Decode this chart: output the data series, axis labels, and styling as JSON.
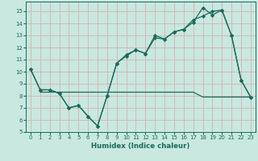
{
  "x": [
    0,
    1,
    2,
    3,
    4,
    5,
    6,
    7,
    8,
    9,
    10,
    11,
    12,
    13,
    14,
    15,
    16,
    17,
    18,
    19,
    20,
    21,
    22,
    23
  ],
  "line1": [
    10.2,
    8.5,
    8.5,
    8.2,
    7.0,
    7.2,
    6.3,
    5.5,
    8.0,
    10.7,
    11.3,
    11.8,
    11.5,
    13.0,
    12.7,
    13.3,
    13.5,
    14.1,
    15.3,
    14.7,
    15.1,
    13.0,
    9.3,
    7.9
  ],
  "line2": [
    10.2,
    8.5,
    8.5,
    8.2,
    7.0,
    7.2,
    6.3,
    5.5,
    8.0,
    10.7,
    11.4,
    11.8,
    11.5,
    12.8,
    12.7,
    13.3,
    13.5,
    14.3,
    14.6,
    15.0,
    15.1,
    13.0,
    9.3,
    7.9
  ],
  "line3_x": [
    1,
    2,
    3,
    4,
    5,
    6,
    7,
    8,
    9,
    10,
    11,
    12,
    13,
    14,
    15,
    16,
    17,
    18,
    19,
    20,
    21,
    22,
    23
  ],
  "line3_y": [
    8.3,
    8.3,
    8.3,
    8.3,
    8.3,
    8.3,
    8.3,
    8.3,
    8.3,
    8.3,
    8.3,
    8.3,
    8.3,
    8.3,
    8.3,
    8.3,
    8.3,
    7.9,
    7.9,
    7.9,
    7.9,
    7.9,
    7.9
  ],
  "line_color": "#1a6b5a",
  "bg_color": "#c8e8e0",
  "grid_color": "#d8b0b0",
  "xlabel": "Humidex (Indice chaleur)",
  "xlim": [
    -0.5,
    23.5
  ],
  "ylim": [
    5,
    15.8
  ],
  "yticks": [
    5,
    6,
    7,
    8,
    9,
    10,
    11,
    12,
    13,
    14,
    15
  ],
  "xticks": [
    0,
    1,
    2,
    3,
    4,
    5,
    6,
    7,
    8,
    9,
    10,
    11,
    12,
    13,
    14,
    15,
    16,
    17,
    18,
    19,
    20,
    21,
    22,
    23
  ],
  "marker": "D",
  "markersize": 2.2,
  "lw": 0.9,
  "tick_fontsize": 5.0,
  "xlabel_fontsize": 6.2
}
